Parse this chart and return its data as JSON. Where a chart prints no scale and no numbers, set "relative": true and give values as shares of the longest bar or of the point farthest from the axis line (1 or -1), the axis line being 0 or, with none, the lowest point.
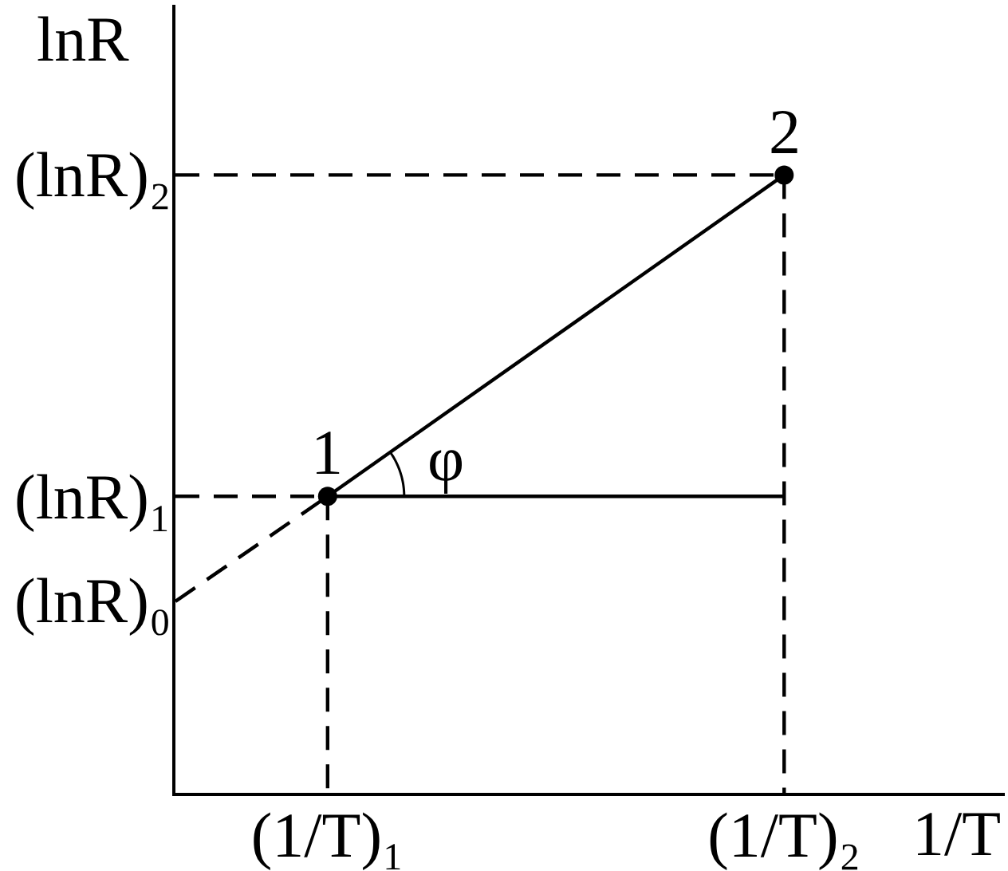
{
  "chart_data": {
    "type": "line",
    "relative": true,
    "xlabel": "1/T",
    "ylabel": "lnR",
    "categories": [
      null,
      "(1/T)₁",
      null,
      null,
      "(1/T)₂"
    ],
    "series": [
      {
        "color": "#000000",
        "values": [
          0.31,
          0.48,
          null,
          null,
          null
        ],
        "line_style": "dashed"
      },
      {
        "color": "#000000",
        "values": [
          0.48,
          0.48,
          null,
          null,
          null
        ],
        "line_style": "dashed"
      },
      {
        "color": "#000000",
        "values": [
          1,
          1,
          1,
          1,
          1
        ],
        "line_style": "dashed"
      },
      {
        "color": "#000000",
        "x": [
          "(1/T)₁",
          "(1/T)₁"
        ],
        "values": [
          0.48,
          0
        ],
        "line_style": "dashed"
      },
      {
        "color": "#000000",
        "x": [
          "(1/T)₂",
          "(1/T)₂"
        ],
        "values": [
          1,
          0
        ],
        "line_style": "dashed"
      },
      {
        "color": "#000000",
        "x": [
          "(1/T)₁",
          "(1/T)₂"
        ],
        "values": [
          0.48,
          0.48
        ],
        "line_style": "solid"
      },
      {
        "color": "#000000",
        "x": [
          "(1/T)₁",
          "(1/T)₂"
        ],
        "values": [
          0.48,
          1
        ],
        "line_style": "solid"
      },
      {
        "type": "scatter",
        "color": "#000000",
        "x": [
          "(1/T)₁",
          "(1/T)₂"
        ],
        "values": [
          0.48,
          1
        ],
        "marker": "circle"
      }
    ],
    "annotations": [
      "(lnR)₂",
      "(lnR)₁",
      "(lnR)₀",
      {
        "text": "1",
        "x": "(1/T)₁",
        "y": 0.48
      },
      {
        "text": "2",
        "x": "(1/T)₂",
        "y": 1
      },
      "φ"
    ]
  }
}
